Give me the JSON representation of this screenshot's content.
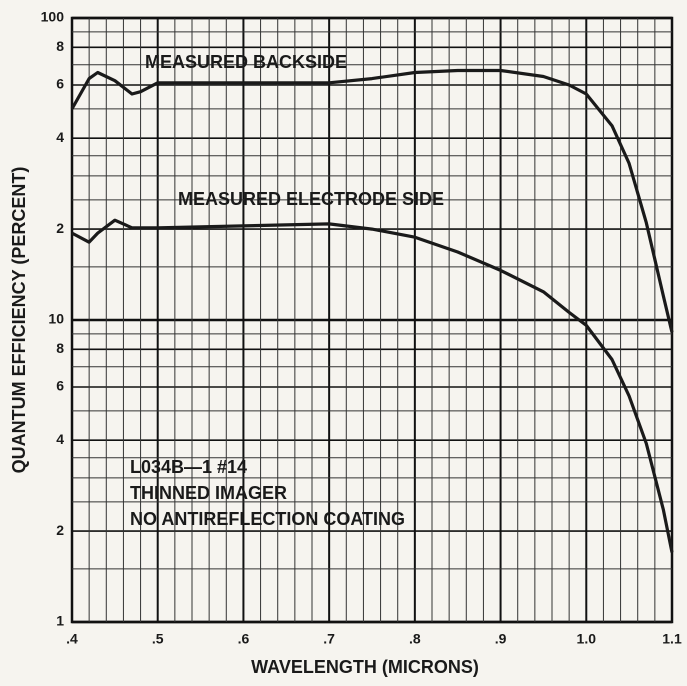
{
  "chart_data": {
    "type": "line",
    "xlabel": "WAVELENGTH (MICRONS)",
    "ylabel": "QUANTUM EFFICIENCY (PERCENT)",
    "log_y": true,
    "grid": true,
    "xlim": [
      0.4,
      1.1
    ],
    "ylim": [
      1,
      100
    ],
    "xticks": [
      {
        "value": 0.4,
        "label": ".4"
      },
      {
        "value": 0.5,
        "label": ".5"
      },
      {
        "value": 0.6,
        "label": ".6"
      },
      {
        "value": 0.7,
        "label": ".7"
      },
      {
        "value": 0.8,
        "label": ".8"
      },
      {
        "value": 0.9,
        "label": ".9"
      },
      {
        "value": 1.0,
        "label": "1.0"
      },
      1.1
    ],
    "yticks": [
      1,
      {
        "value": 2,
        "label": "2"
      },
      4,
      6,
      8,
      10,
      {
        "value": 20,
        "label": "2"
      },
      {
        "value": 40,
        "label": "4"
      },
      {
        "value": 60,
        "label": "6"
      },
      {
        "value": 80,
        "label": "8"
      },
      100
    ],
    "minor_xticks": [
      0.42,
      0.44,
      0.46,
      0.48,
      0.52,
      0.54,
      0.56,
      0.58,
      0.62,
      0.64,
      0.66,
      0.68,
      0.72,
      0.74,
      0.76,
      0.78,
      0.82,
      0.84,
      0.86,
      0.88,
      0.92,
      0.94,
      0.96,
      0.98,
      1.02,
      1.04,
      1.06,
      1.08
    ],
    "minor_yticks": [
      1.5,
      2.5,
      3,
      3.5,
      5,
      7,
      9,
      15,
      25,
      30,
      35,
      50,
      70,
      90
    ],
    "annotations": [
      {
        "text": "MEASURED BACKSIDE"
      },
      {
        "text": "MEASURED ELECTRODE SIDE"
      },
      {
        "text": "L034B—1 #14"
      },
      {
        "text": "THINNED IMAGER"
      },
      {
        "text": "NO ANTIREFLECTION COATING"
      }
    ],
    "x": [
      0.4,
      0.42,
      0.43,
      0.45,
      0.47,
      0.48,
      0.5,
      0.6,
      0.7,
      0.75,
      0.8,
      0.85,
      0.9,
      0.95,
      0.98,
      1.0,
      1.03,
      1.05,
      1.07,
      1.09,
      1.1
    ],
    "series": [
      {
        "name": "MEASURED BACKSIDE",
        "color": "#1a1a1a",
        "values": [
          50,
          63,
          66,
          62,
          56,
          57,
          61,
          61,
          61,
          63,
          66,
          67,
          67,
          64,
          60,
          56,
          44,
          33,
          21,
          12,
          9.1
        ]
      },
      {
        "name": "MEASURED ELECTRODE SIDE",
        "color": "#1a1a1a",
        "values": [
          19.4,
          18.1,
          19.4,
          21.4,
          20.2,
          20.2,
          20.2,
          20.5,
          20.8,
          20,
          18.8,
          16.8,
          14.6,
          12.4,
          10.6,
          9.6,
          7.4,
          5.6,
          3.9,
          2.35,
          1.7
        ]
      }
    ]
  }
}
